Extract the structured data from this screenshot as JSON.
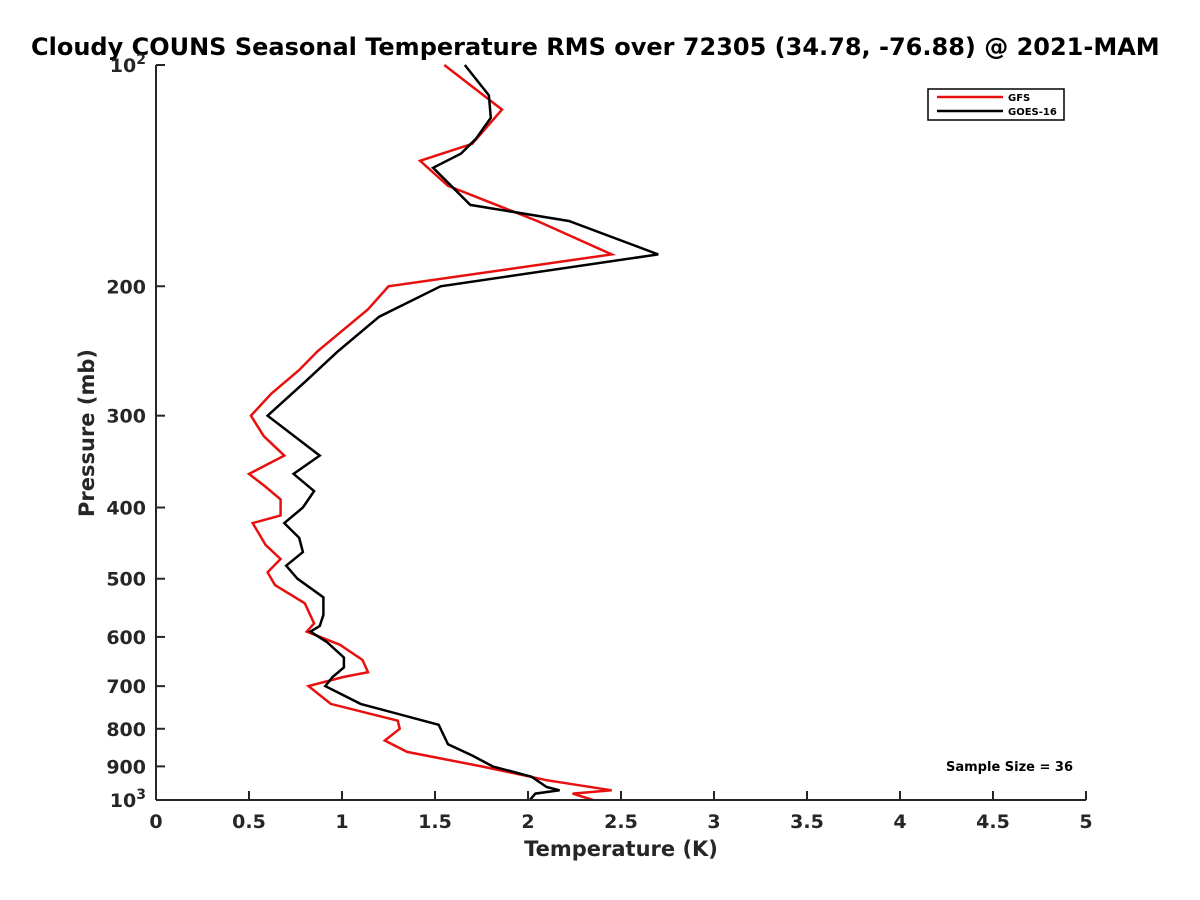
{
  "chart_data": {
    "type": "line",
    "title": "Cloudy COUNS Seasonal Temperature RMS over 72305 (34.78, -76.88) @ 2021-MAM",
    "xlabel": "Temperature (K)",
    "ylabel": "Pressure (mb)",
    "xlim": [
      0,
      5
    ],
    "ylim": [
      100,
      1000
    ],
    "yscale": "log",
    "y_reversed": true,
    "grid": false,
    "legend_position": "top-right",
    "x_ticks": [
      0,
      0.5,
      1,
      1.5,
      2,
      2.5,
      3,
      3.5,
      4,
      4.5,
      5
    ],
    "x_tick_labels": [
      "0",
      "0.5",
      "1",
      "1.5",
      "2",
      "2.5",
      "3",
      "3.5",
      "4",
      "4.5",
      "5"
    ],
    "y_ticks": [
      100,
      200,
      300,
      400,
      500,
      600,
      700,
      800,
      900,
      1000
    ],
    "y_tick_labels": [
      {
        "base": "10",
        "exp": "2"
      },
      {
        "base": "200",
        "exp": ""
      },
      {
        "base": "300",
        "exp": ""
      },
      {
        "base": "400",
        "exp": ""
      },
      {
        "base": "500",
        "exp": ""
      },
      {
        "base": "600",
        "exp": ""
      },
      {
        "base": "700",
        "exp": ""
      },
      {
        "base": "800",
        "exp": ""
      },
      {
        "base": "900",
        "exp": ""
      },
      {
        "base": "10",
        "exp": "3"
      }
    ],
    "annotation": "Sample Size = 36",
    "series": [
      {
        "name": "GFS",
        "color": "#e8100f",
        "points": [
          [
            1.55,
            100
          ],
          [
            1.86,
            115
          ],
          [
            1.7,
            128
          ],
          [
            1.42,
            135
          ],
          [
            1.57,
            146
          ],
          [
            2.05,
            163
          ],
          [
            2.45,
            181
          ],
          [
            1.25,
            200
          ],
          [
            1.14,
            215
          ],
          [
            1.0,
            230
          ],
          [
            0.87,
            245
          ],
          [
            0.77,
            260
          ],
          [
            0.62,
            280
          ],
          [
            0.51,
            300
          ],
          [
            0.58,
            320
          ],
          [
            0.69,
            340
          ],
          [
            0.5,
            360
          ],
          [
            0.59,
            375
          ],
          [
            0.67,
            390
          ],
          [
            0.67,
            410
          ],
          [
            0.52,
            420
          ],
          [
            0.59,
            450
          ],
          [
            0.67,
            470
          ],
          [
            0.6,
            490
          ],
          [
            0.64,
            510
          ],
          [
            0.8,
            540
          ],
          [
            0.85,
            575
          ],
          [
            0.81,
            590
          ],
          [
            0.99,
            615
          ],
          [
            1.11,
            645
          ],
          [
            1.14,
            670
          ],
          [
            1.01,
            680
          ],
          [
            0.82,
            700
          ],
          [
            0.94,
            740
          ],
          [
            1.3,
            780
          ],
          [
            1.31,
            800
          ],
          [
            1.23,
            830
          ],
          [
            1.35,
            860
          ],
          [
            1.75,
            900
          ],
          [
            2.1,
            940
          ],
          [
            2.45,
            970
          ],
          [
            2.24,
            980
          ],
          [
            2.35,
            1000
          ]
        ]
      },
      {
        "name": "GOES-16",
        "color": "#000000",
        "points": [
          [
            1.66,
            100
          ],
          [
            1.79,
            110
          ],
          [
            1.8,
            118
          ],
          [
            1.72,
            126
          ],
          [
            1.64,
            132
          ],
          [
            1.49,
            138
          ],
          [
            1.69,
            155
          ],
          [
            2.22,
            163
          ],
          [
            2.7,
            181
          ],
          [
            1.53,
            200
          ],
          [
            1.2,
            220
          ],
          [
            0.98,
            245
          ],
          [
            0.8,
            270
          ],
          [
            0.6,
            300
          ],
          [
            0.88,
            340
          ],
          [
            0.74,
            360
          ],
          [
            0.85,
            380
          ],
          [
            0.79,
            400
          ],
          [
            0.69,
            420
          ],
          [
            0.77,
            440
          ],
          [
            0.79,
            460
          ],
          [
            0.7,
            480
          ],
          [
            0.76,
            500
          ],
          [
            0.9,
            530
          ],
          [
            0.9,
            560
          ],
          [
            0.88,
            580
          ],
          [
            0.83,
            590
          ],
          [
            0.92,
            610
          ],
          [
            1.01,
            640
          ],
          [
            1.01,
            660
          ],
          [
            0.95,
            680
          ],
          [
            0.91,
            700
          ],
          [
            1.1,
            740
          ],
          [
            1.52,
            790
          ],
          [
            1.56,
            830
          ],
          [
            1.57,
            840
          ],
          [
            1.7,
            870
          ],
          [
            1.81,
            900
          ],
          [
            2.02,
            930
          ],
          [
            2.1,
            960
          ],
          [
            2.17,
            970
          ],
          [
            2.04,
            980
          ],
          [
            2.01,
            1000
          ]
        ]
      }
    ]
  }
}
